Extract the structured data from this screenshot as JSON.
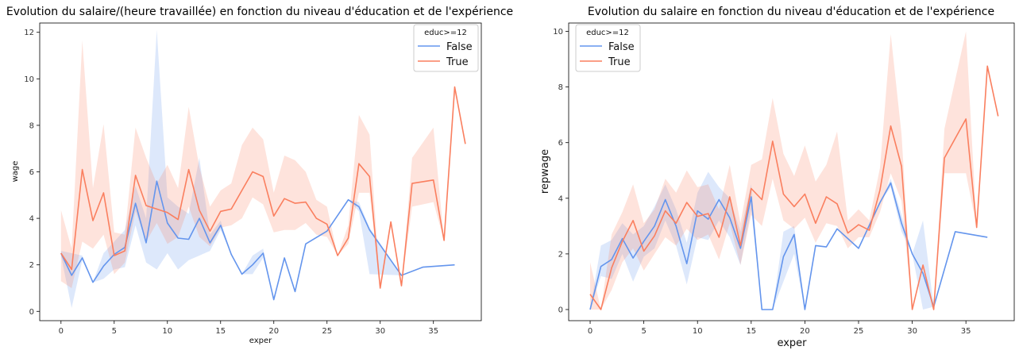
{
  "chart_data": [
    {
      "type": "line",
      "title": "Evolution du salaire/(heure travaillée) en fonction du niveau d'éducation et de l'expérience",
      "xlabel": "exper",
      "ylabel": "wage",
      "xlim": [
        -2,
        39.5
      ],
      "ylim": [
        -0.4,
        12.4
      ],
      "xticks": [
        0,
        5,
        10,
        15,
        20,
        25,
        30,
        35
      ],
      "yticks": [
        0,
        2,
        4,
        6,
        8,
        10,
        12
      ],
      "grid": false,
      "legend": {
        "title": "educ>=12",
        "placement": "top-right"
      },
      "series": [
        {
          "name": "False",
          "color": "#6495ED",
          "x": [
            0,
            1,
            2,
            3,
            4,
            5,
            6,
            7,
            8,
            9,
            10,
            11,
            12,
            13,
            14,
            15,
            16,
            17,
            18,
            19,
            20,
            21,
            22,
            23,
            25,
            27,
            28,
            29,
            32,
            34,
            37
          ],
          "y": [
            2.5,
            1.55,
            2.3,
            1.25,
            1.95,
            2.45,
            2.75,
            4.65,
            2.95,
            5.6,
            3.8,
            3.15,
            3.1,
            4.0,
            2.95,
            3.7,
            2.45,
            1.6,
            2.0,
            2.5,
            0.5,
            2.3,
            0.85,
            2.9,
            3.45,
            4.8,
            4.5,
            3.5,
            1.55,
            1.9,
            2.0
          ],
          "lower": [
            2.4,
            0.15,
            2.2,
            1.25,
            1.4,
            1.8,
            1.9,
            3.7,
            2.1,
            1.8,
            2.5,
            1.8,
            2.2,
            2.4,
            2.6,
            3.5,
            2.45,
            1.6,
            1.6,
            2.3,
            0.5,
            2.3,
            0.85,
            2.9,
            3.45,
            4.8,
            4.3,
            1.6,
            1.55,
            1.9,
            2.0
          ],
          "upper": [
            2.6,
            2.5,
            2.4,
            1.25,
            2.5,
            3.0,
            3.5,
            5.4,
            4.0,
            12.1,
            4.9,
            4.5,
            4.2,
            6.6,
            3.3,
            3.9,
            2.45,
            1.6,
            2.4,
            2.7,
            0.5,
            2.3,
            0.85,
            2.9,
            3.45,
            4.8,
            4.7,
            3.6,
            1.55,
            1.9,
            2.0
          ]
        },
        {
          "name": "True",
          "color": "#FA7F5F",
          "x": [
            0,
            1,
            2,
            3,
            4,
            5,
            6,
            7,
            8,
            9,
            10,
            11,
            12,
            13,
            14,
            15,
            16,
            17,
            18,
            19,
            20,
            21,
            22,
            23,
            24,
            25,
            26,
            27,
            28,
            29,
            30,
            31,
            32,
            33,
            35,
            36,
            37,
            38
          ],
          "y": [
            2.5,
            1.8,
            6.1,
            3.9,
            5.1,
            2.4,
            2.6,
            5.85,
            4.55,
            4.4,
            4.25,
            3.95,
            6.1,
            4.35,
            3.45,
            4.3,
            4.4,
            5.2,
            6.0,
            5.8,
            4.1,
            4.85,
            4.65,
            4.7,
            4.0,
            3.75,
            2.4,
            3.15,
            6.35,
            5.8,
            1.0,
            3.85,
            1.1,
            5.5,
            5.65,
            3.05,
            9.65,
            7.2
          ],
          "lower": [
            1.3,
            1.0,
            3.0,
            2.7,
            3.3,
            1.6,
            2.1,
            4.3,
            3.0,
            3.8,
            2.9,
            3.2,
            4.5,
            3.2,
            2.8,
            3.6,
            3.7,
            4.0,
            4.9,
            4.6,
            3.4,
            3.5,
            3.5,
            3.8,
            3.3,
            3.2,
            2.4,
            2.9,
            5.1,
            5.1,
            1.0,
            3.85,
            1.1,
            4.5,
            4.7,
            3.05,
            9.65,
            7.2
          ],
          "upper": [
            4.35,
            2.7,
            11.65,
            5.3,
            8.05,
            3.4,
            3.3,
            7.9,
            6.6,
            5.5,
            6.3,
            5.3,
            8.8,
            6.2,
            4.5,
            5.2,
            5.5,
            7.15,
            7.9,
            7.4,
            5.1,
            6.7,
            6.5,
            6.0,
            4.8,
            4.5,
            2.4,
            3.7,
            8.45,
            7.6,
            1.0,
            3.85,
            1.1,
            6.6,
            7.9,
            3.05,
            9.65,
            7.2
          ]
        }
      ]
    },
    {
      "type": "line",
      "title": "Evolution du salaire en fonction du niveau d'éducation et de l'expérience",
      "xlabel": "exper",
      "ylabel": "repwage",
      "xlim": [
        -2,
        39.5
      ],
      "ylim": [
        -0.4,
        10.3
      ],
      "xticks": [
        0,
        5,
        10,
        15,
        20,
        25,
        30,
        35
      ],
      "yticks": [
        0,
        2,
        4,
        6,
        8,
        10
      ],
      "grid": false,
      "legend": {
        "title": "educ>=12",
        "placement": "top-left"
      },
      "series": [
        {
          "name": "False",
          "color": "#6495ED",
          "x": [
            0,
            1,
            2,
            3,
            4,
            5,
            6,
            7,
            8,
            9,
            10,
            11,
            12,
            13,
            14,
            15,
            16,
            17,
            18,
            19,
            20,
            21,
            22,
            23,
            25,
            27,
            28,
            29,
            30,
            31,
            32,
            34,
            37
          ],
          "y": [
            0.0,
            1.55,
            1.8,
            2.55,
            1.85,
            2.45,
            3.0,
            3.95,
            3.0,
            1.65,
            3.55,
            3.25,
            3.95,
            3.3,
            2.2,
            4.05,
            0.0,
            0.0,
            1.9,
            2.7,
            0.0,
            2.3,
            2.25,
            2.9,
            2.2,
            3.85,
            4.55,
            3.1,
            2.0,
            1.3,
            0.1,
            2.8,
            2.6
          ],
          "lower": [
            0.0,
            1.2,
            1.1,
            2.0,
            1.0,
            1.9,
            2.2,
            3.2,
            2.3,
            0.9,
            2.6,
            2.5,
            3.2,
            2.6,
            1.6,
            3.6,
            0.0,
            0.0,
            1.0,
            2.0,
            0.0,
            2.3,
            2.25,
            2.9,
            2.2,
            3.85,
            4.4,
            2.8,
            2.0,
            0.0,
            0.1,
            2.8,
            2.6
          ],
          "upper": [
            0.0,
            2.3,
            2.5,
            3.1,
            2.7,
            3.0,
            3.7,
            4.5,
            3.6,
            2.4,
            4.2,
            4.95,
            4.4,
            4.0,
            2.8,
            4.5,
            0.0,
            0.0,
            2.8,
            3.0,
            0.0,
            2.3,
            2.25,
            2.9,
            2.2,
            3.85,
            4.7,
            3.4,
            2.0,
            3.2,
            0.1,
            2.8,
            2.6
          ]
        },
        {
          "name": "True",
          "color": "#FA7F5F",
          "x": [
            0,
            1,
            2,
            3,
            4,
            5,
            6,
            7,
            8,
            9,
            10,
            11,
            12,
            13,
            14,
            15,
            16,
            17,
            18,
            19,
            20,
            21,
            22,
            23,
            24,
            25,
            26,
            27,
            28,
            29,
            30,
            31,
            32,
            33,
            35,
            36,
            37,
            38
          ],
          "y": [
            0.55,
            0.0,
            1.5,
            2.45,
            3.2,
            2.1,
            2.65,
            3.55,
            3.1,
            3.85,
            3.35,
            3.45,
            2.6,
            4.05,
            2.3,
            4.35,
            3.95,
            6.05,
            4.15,
            3.7,
            4.15,
            3.1,
            4.05,
            3.8,
            2.75,
            3.05,
            2.85,
            4.3,
            6.6,
            5.15,
            0.0,
            1.6,
            0.0,
            5.45,
            6.85,
            2.95,
            8.75,
            6.95
          ],
          "lower": [
            0.0,
            0.0,
            0.7,
            1.7,
            2.2,
            1.4,
            2.0,
            2.6,
            2.3,
            2.9,
            2.5,
            2.7,
            1.8,
            3.1,
            1.6,
            3.4,
            3.0,
            4.7,
            3.2,
            2.9,
            3.3,
            2.4,
            3.1,
            3.0,
            2.2,
            2.6,
            2.6,
            3.5,
            4.9,
            3.9,
            0.0,
            1.6,
            0.0,
            4.9,
            4.9,
            2.95,
            8.75,
            6.95
          ],
          "upper": [
            1.7,
            0.0,
            2.7,
            3.5,
            4.5,
            3.1,
            3.6,
            4.7,
            4.2,
            5.0,
            4.4,
            4.5,
            3.6,
            5.2,
            3.1,
            5.2,
            5.4,
            7.6,
            5.6,
            4.8,
            5.9,
            4.6,
            5.2,
            6.4,
            3.2,
            3.6,
            3.2,
            5.1,
            9.9,
            6.3,
            0.0,
            1.6,
            0.0,
            6.5,
            10.0,
            2.95,
            8.75,
            6.95
          ]
        }
      ]
    }
  ]
}
